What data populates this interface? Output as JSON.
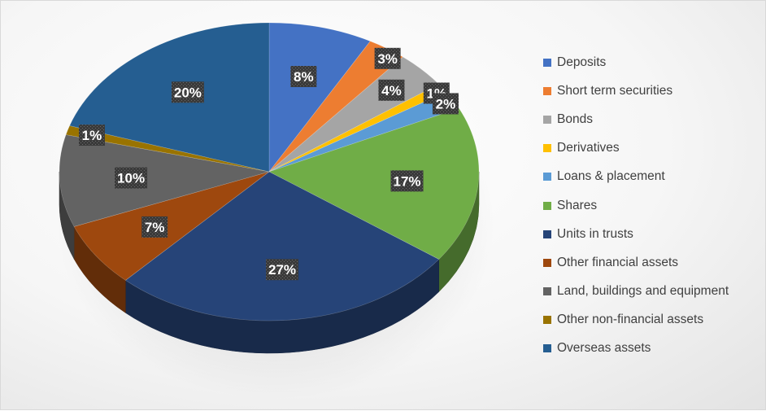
{
  "chart_data": {
    "type": "pie",
    "title": "",
    "categories": [
      "Deposits",
      "Short term securities",
      "Bonds",
      "Derivatives",
      "Loans & placement",
      "Shares",
      "Units in trusts",
      "Other financial assets",
      "Land, buildings and equipment",
      "Other non-financial assets",
      "Overseas assets"
    ],
    "values": [
      8,
      3,
      4,
      1,
      2,
      17,
      27,
      7,
      10,
      1,
      20
    ],
    "data_labels": [
      "8%",
      "3%",
      "4%",
      "1%",
      "2%",
      "17%",
      "27%",
      "7%",
      "10%",
      "1%",
      "20%"
    ],
    "colors": [
      "#4472C4",
      "#ED7D31",
      "#A5A5A5",
      "#FFC000",
      "#5B9BD5",
      "#70AD47",
      "#264478",
      "#9E480E",
      "#636363",
      "#997300",
      "#255E91"
    ],
    "legend_position": "right",
    "style": "3d-tilted",
    "start_angle_deg": 0
  }
}
